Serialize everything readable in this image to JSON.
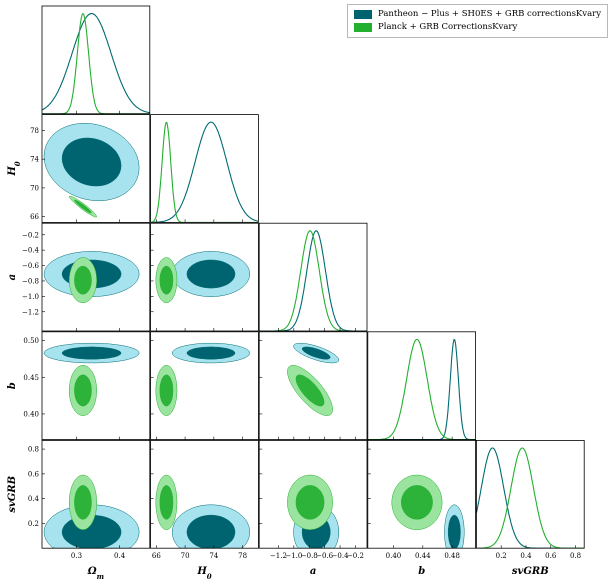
{
  "chart_data": {
    "type": "triangle-corner",
    "parameters": [
      {
        "key": "om",
        "label": "Ω_m",
        "range": [
          0.22,
          0.47
        ],
        "ticks": [
          0.3,
          0.4
        ]
      },
      {
        "key": "h0",
        "label": "H_0",
        "range": [
          65.2,
          80.2
        ],
        "ticks": [
          66,
          70,
          74,
          78
        ]
      },
      {
        "key": "a",
        "label": "a",
        "range": [
          -1.45,
          -0.05
        ],
        "ticks": [
          -1.2,
          -1.0,
          -0.8,
          -0.6,
          -0.4,
          -0.2
        ]
      },
      {
        "key": "b",
        "label": "b",
        "range": [
          0.365,
          0.512
        ],
        "ticks": [
          0.4,
          0.44,
          0.48
        ]
      },
      {
        "key": "sv",
        "label": "svGRB",
        "range": [
          0.0,
          0.87
        ],
        "ticks": [
          0.2,
          0.4,
          0.6,
          0.8
        ]
      }
    ],
    "y_tick_overrides": {
      "a": [
        -1.2,
        -1.0,
        -0.8,
        -0.6,
        -0.4,
        -0.2
      ],
      "b": [
        0.4,
        0.45,
        0.5
      ]
    },
    "series": [
      {
        "name": "Pantheon − Plus + SH0ES + GRB correctionsKvary",
        "line_color": "#006b70",
        "fill_outer": "#a6e3ef",
        "fill_inner": "#006470",
        "mean": {
          "om": 0.335,
          "h0": 73.6,
          "a": -0.71,
          "b": 0.483,
          "sv": 0.13
        },
        "sigma": {
          "om": 0.045,
          "h0": 2.2,
          "a": 0.12,
          "b": 0.0055,
          "sv": 0.09
        },
        "corr": {
          "om-h0": -0.15,
          "b-a": -0.7,
          "sv-a": 0.0
        }
      },
      {
        "name": "Planck + GRB CorrectionsKvary",
        "line_color": "#22b02e",
        "fill_outer": "#9ae49f",
        "fill_inner": "#2db33a",
        "mean": {
          "om": 0.315,
          "h0": 67.4,
          "a": -0.79,
          "b": 0.432,
          "sv": 0.37
        },
        "sigma": {
          "om": 0.013,
          "h0": 0.6,
          "a": 0.12,
          "b": 0.014,
          "sv": 0.09
        },
        "corr": {
          "om-h0": -0.95,
          "b-a": -0.75,
          "sv-a": 0.0
        }
      }
    ],
    "legend_position": "top-right"
  }
}
